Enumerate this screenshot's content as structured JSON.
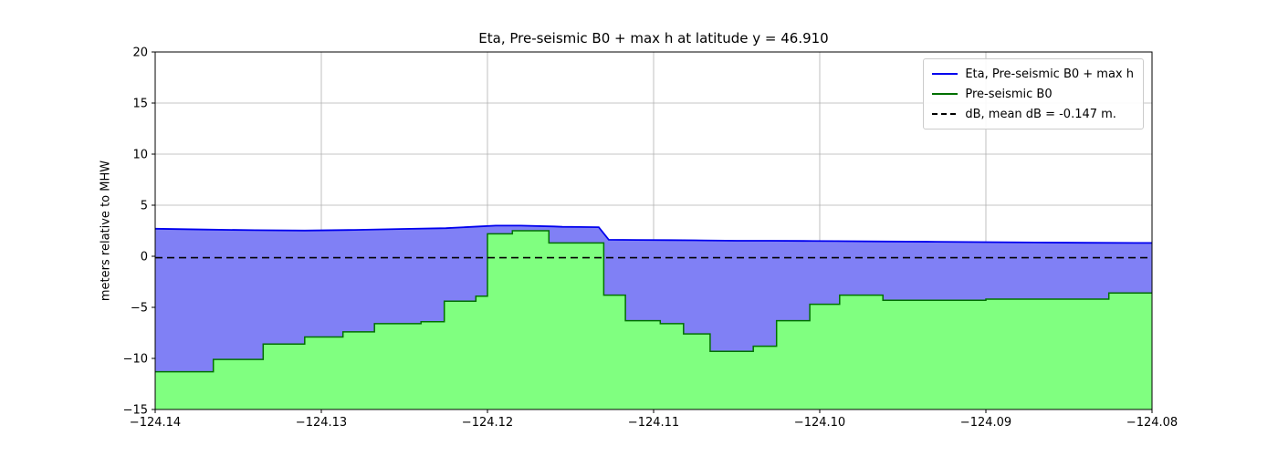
{
  "chart_data": {
    "type": "area",
    "title": "Eta, Pre-seismic B0 + max h at latitude y = 46.910",
    "xlabel": "",
    "ylabel": "meters relative to MHW",
    "xlim": [
      -124.14,
      -124.08
    ],
    "ylim": [
      -15,
      20
    ],
    "grid": true,
    "grid_color": "#b0b0b0",
    "xticks": [
      -124.14,
      -124.13,
      -124.12,
      -124.11,
      -124.1,
      -124.09,
      -124.08
    ],
    "xtick_labels": [
      "−124.14",
      "−124.13",
      "−124.12",
      "−124.11",
      "−124.10",
      "−124.09",
      "−124.08"
    ],
    "yticks": [
      -15,
      -10,
      -5,
      0,
      5,
      10,
      15,
      20
    ],
    "ytick_labels": [
      "−15",
      "−10",
      "−5",
      "0",
      "5",
      "10",
      "15",
      "20"
    ],
    "legend": {
      "position": "upper right",
      "entries": [
        {
          "label": "Eta, Pre-seismic B0 + max h",
          "color": "#0000ee",
          "dash": null
        },
        {
          "label": "Pre-seismic B0",
          "color": "#007000",
          "dash": null
        },
        {
          "label": "dB, mean dB = -0.147 m.",
          "color": "#000000",
          "dash": "6 4"
        }
      ]
    },
    "series": [
      {
        "name": "Eta, Pre-seismic B0 + max h",
        "type": "line",
        "color": "#0000ee",
        "line_width": 1.8,
        "fill_between": "Pre-seismic B0",
        "fill_color": "#8080f5",
        "x": [
          -124.14,
          -124.137,
          -124.134,
          -124.131,
          -124.128,
          -124.125,
          -124.1225,
          -124.1205,
          -124.1195,
          -124.118,
          -124.116,
          -124.1155,
          -124.1133,
          -124.1127,
          -124.111,
          -124.109,
          -124.107,
          -124.105,
          -124.103,
          -124.101,
          -124.099,
          -124.096,
          -124.093,
          -124.09,
          -124.087,
          -124.084,
          -124.081,
          -124.08
        ],
        "y": [
          2.7,
          2.62,
          2.55,
          2.52,
          2.58,
          2.68,
          2.75,
          2.92,
          3.0,
          3.0,
          2.92,
          2.88,
          2.85,
          1.62,
          1.6,
          1.58,
          1.55,
          1.52,
          1.52,
          1.5,
          1.48,
          1.45,
          1.42,
          1.38,
          1.35,
          1.32,
          1.3,
          1.3
        ]
      },
      {
        "name": "Pre-seismic B0",
        "type": "step",
        "color": "#007000",
        "line_width": 1.5,
        "fill_to_y": -15,
        "fill_color": "#80ff80",
        "steps": [
          [
            -124.14,
            -11.3
          ],
          [
            -124.1365,
            -10.1
          ],
          [
            -124.1335,
            -8.6
          ],
          [
            -124.131,
            -7.9
          ],
          [
            -124.1287,
            -7.4
          ],
          [
            -124.1268,
            -6.6
          ],
          [
            -124.124,
            -6.4
          ],
          [
            -124.1226,
            -4.4
          ],
          [
            -124.1207,
            -3.9
          ],
          [
            -124.12,
            2.2
          ],
          [
            -124.1185,
            2.5
          ],
          [
            -124.1163,
            1.3
          ],
          [
            -124.113,
            -3.8
          ],
          [
            -124.1117,
            -6.3
          ],
          [
            -124.1096,
            -6.6
          ],
          [
            -124.1082,
            -7.6
          ],
          [
            -124.1066,
            -9.3
          ],
          [
            -124.104,
            -8.8
          ],
          [
            -124.1026,
            -6.3
          ],
          [
            -124.1006,
            -4.7
          ],
          [
            -124.0988,
            -3.8
          ],
          [
            -124.0962,
            -4.3
          ],
          [
            -124.09,
            -4.2
          ],
          [
            -124.0826,
            -3.6
          ]
        ],
        "x_end": -124.08
      },
      {
        "name": "dB, mean dB = -0.147 m.",
        "type": "hline",
        "color": "#000000",
        "line_width": 1.6,
        "dash": "8 5",
        "y": -0.147
      }
    ]
  }
}
